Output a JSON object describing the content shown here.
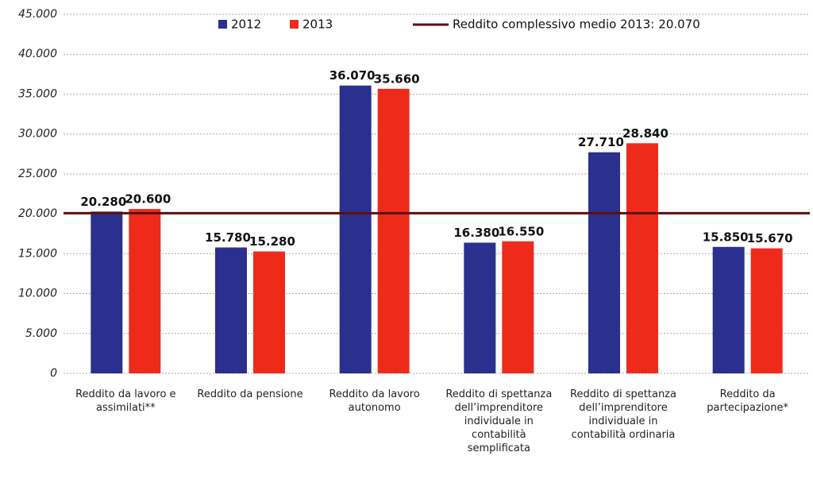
{
  "chart_data": {
    "type": "bar",
    "categories": [
      "Reddito da lavoro e assimilati**",
      "Reddito da pensione",
      "Reddito da lavoro autonomo",
      "Reddito di spettanza dell’imprenditore individuale in contabilità semplificata",
      "Reddito di spettanza dell’imprenditore individuale in contabilità ordinaria",
      "Reddito da partecipazione*"
    ],
    "series": [
      {
        "name": "2012",
        "color": "#2b2f8e",
        "values": [
          20280,
          15780,
          36070,
          16380,
          27710,
          15850
        ],
        "value_labels": [
          "20.280",
          "15.780",
          "36.070",
          "16.380",
          "27.710",
          "15.850"
        ]
      },
      {
        "name": "2013",
        "color": "#ee2b1b",
        "values": [
          20600,
          15280,
          35660,
          16550,
          28840,
          15670
        ],
        "value_labels": [
          "20.600",
          "15.280",
          "35.660",
          "16.550",
          "28.840",
          "15.670"
        ]
      }
    ],
    "reference_line": {
      "label": "Reddito complessivo medio 2013:",
      "value": 20070,
      "value_label": "20.070",
      "color": "#5a1010",
      "value_label_color": "#e0401a"
    },
    "ylim": [
      0,
      45000
    ],
    "yticks": [
      0,
      {
        "value": 5000,
        "label": "5.000"
      },
      {
        "value": 10000,
        "label": "10.000"
      },
      {
        "value": 15000,
        "label": "15.000"
      },
      {
        "value": 20000,
        "label": "20.000"
      },
      {
        "value": 25000,
        "label": "25.000"
      },
      {
        "value": 30000,
        "label": "30.000"
      },
      {
        "value": 35000,
        "label": "35.000"
      },
      {
        "value": 40000,
        "label": "40.000"
      },
      {
        "value": 45000,
        "label": "45.000"
      }
    ],
    "grid": true
  }
}
